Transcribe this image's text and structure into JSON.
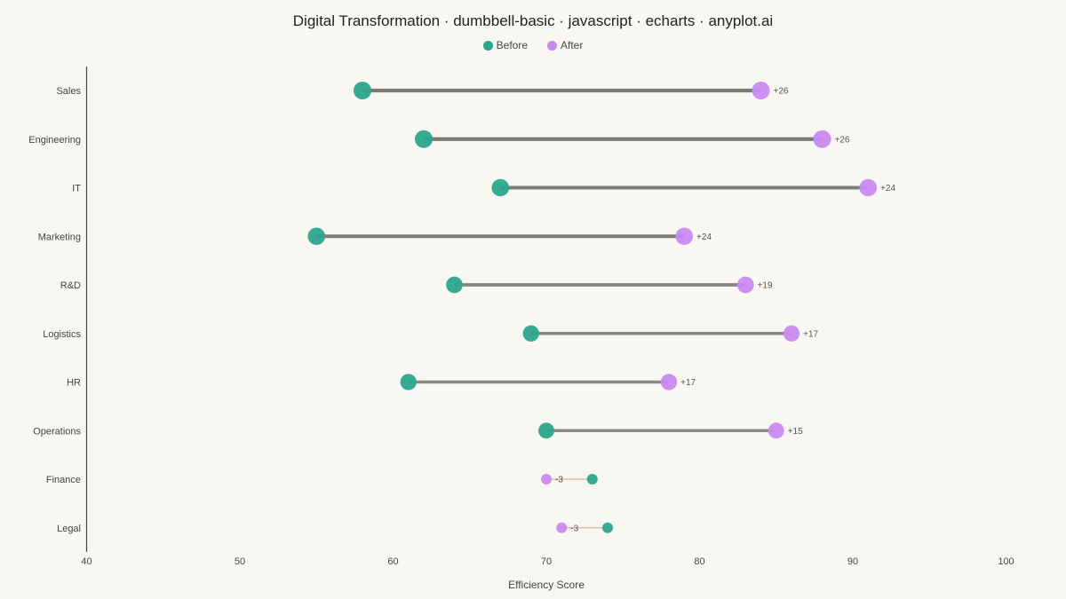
{
  "chart_data": {
    "type": "dumbbell",
    "title": "Digital Transformation · dumbbell-basic · javascript · echarts · anyplot.ai",
    "xlabel": "Efficiency Score",
    "ylabel": "",
    "xlim": [
      40,
      100
    ],
    "x_ticks": [
      40,
      50,
      60,
      70,
      80,
      90,
      100
    ],
    "legend_position": "top-center",
    "grid": false,
    "series": [
      {
        "name": "Before",
        "color": "#2ca58d"
      },
      {
        "name": "After",
        "color": "#c98af0"
      }
    ],
    "categories": [
      "Sales",
      "Engineering",
      "IT",
      "Marketing",
      "R&D",
      "Logistics",
      "HR",
      "Operations",
      "Finance",
      "Legal"
    ],
    "before": [
      58,
      62,
      67,
      55,
      64,
      69,
      61,
      70,
      73,
      74
    ],
    "after": [
      84,
      88,
      91,
      79,
      83,
      86,
      78,
      85,
      70,
      71
    ],
    "diff_labels": [
      "+26",
      "+26",
      "+24",
      "+24",
      "+19",
      "+17",
      "+17",
      "+15",
      "-3",
      "-3"
    ]
  },
  "colors": {
    "background": "#f9f7f1",
    "before": "#2ca58d",
    "after": "#c98af0",
    "connector_positive": "#7a7a74",
    "connector_negative": "#d9aaa0",
    "axis": "#444444",
    "text": "#444444"
  }
}
